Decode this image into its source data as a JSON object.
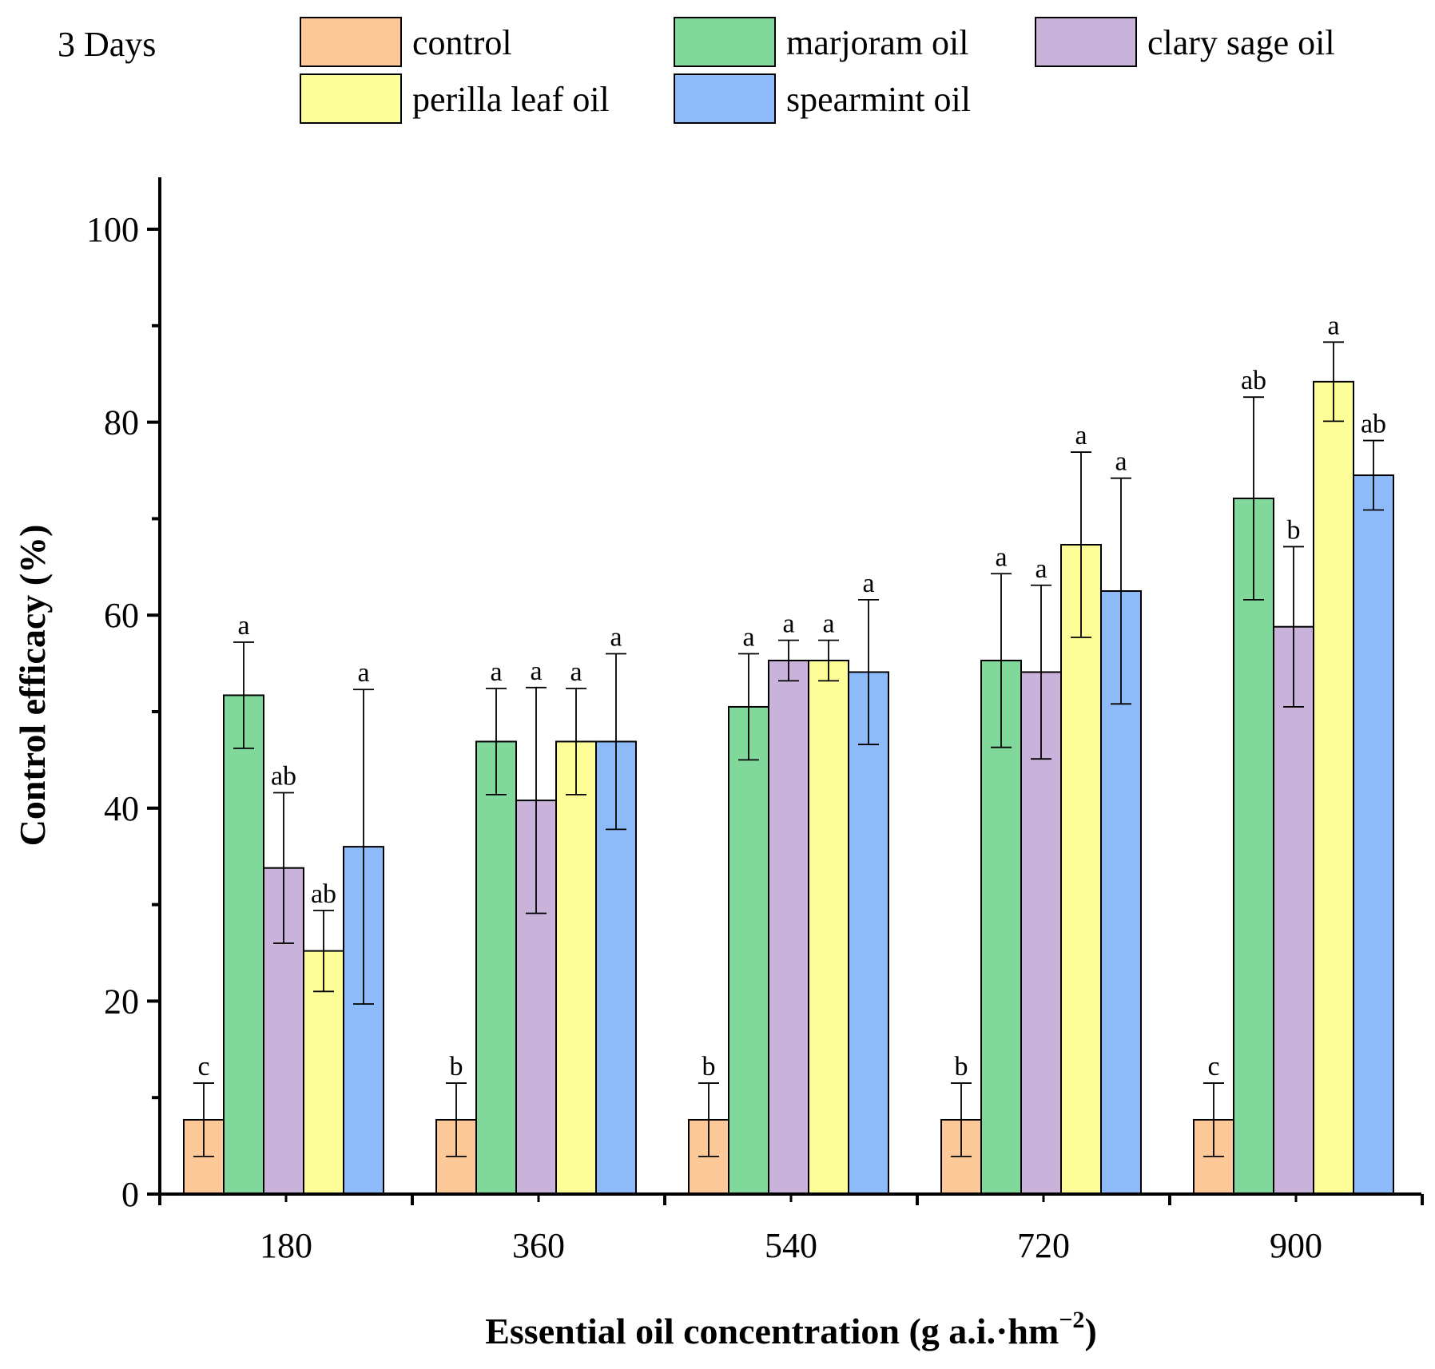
{
  "chart_data": {
    "type": "bar",
    "title": "3 Days",
    "xlabel": "Essential oil concentration (g a.i.·hm",
    "xlabel_sup": "−2",
    "xlabel_end": ")",
    "ylabel": "Control efficacy (%)",
    "ylim": [
      0,
      105
    ],
    "yticks": [
      "0",
      "20",
      "40",
      "60",
      "80",
      "100"
    ],
    "categories": [
      "180",
      "360",
      "540",
      "720",
      "900"
    ],
    "series": [
      {
        "name": "control",
        "color": "#FDC998",
        "values": [
          7.7,
          7.7,
          7.7,
          7.7,
          7.7
        ],
        "errors": [
          3.8,
          3.8,
          3.8,
          3.8,
          3.8
        ],
        "labels": [
          "c",
          "b",
          "b",
          "b",
          "c"
        ]
      },
      {
        "name": "marjoram oil",
        "color": "#80D99A",
        "values": [
          51.7,
          46.9,
          50.5,
          55.3,
          72.1
        ],
        "errors": [
          5.5,
          5.5,
          5.5,
          9.0,
          10.5
        ],
        "labels": [
          "a",
          "a",
          "a",
          "a",
          "ab"
        ]
      },
      {
        "name": "clary sage oil",
        "color": "#C9B3DB",
        "values": [
          33.8,
          40.8,
          55.3,
          54.1,
          58.8
        ],
        "errors": [
          7.8,
          11.7,
          2.1,
          9.0,
          8.3
        ],
        "labels": [
          "ab",
          "a",
          "a",
          "a",
          "b"
        ]
      },
      {
        "name": "perilla leaf oil",
        "color": "#FEFE99",
        "values": [
          25.2,
          46.9,
          55.3,
          67.3,
          84.2
        ],
        "errors": [
          4.2,
          5.5,
          2.1,
          9.6,
          4.1
        ],
        "labels": [
          "ab",
          "a",
          "a",
          "a",
          "a"
        ]
      },
      {
        "name": "spearmint oil",
        "color": "#8DBAF8",
        "values": [
          36.0,
          46.9,
          54.1,
          62.5,
          74.5
        ],
        "errors": [
          16.3,
          9.1,
          7.5,
          11.7,
          3.6
        ],
        "labels": [
          "a",
          "a",
          "a",
          "a",
          "ab"
        ]
      }
    ],
    "legend": "top"
  }
}
